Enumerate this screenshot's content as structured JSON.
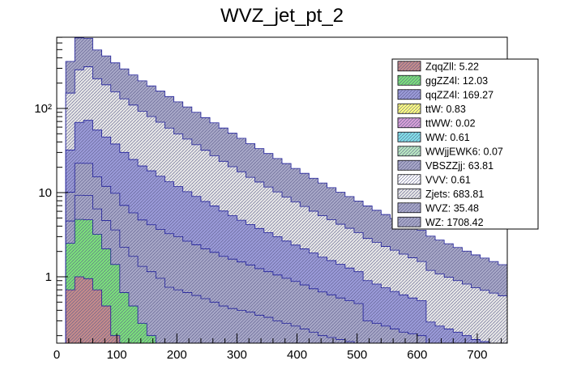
{
  "chart_data": {
    "type": "bar",
    "stacked": true,
    "title": "WVZ_jet_pt_2",
    "xlabel": "",
    "ylabel": "",
    "yscale": "log",
    "xlim": [
      0,
      750
    ],
    "ylim": [
      0.15,
      700
    ],
    "bin_edges_start": 15,
    "bin_width": 15,
    "xticks": [
      0,
      100,
      200,
      300,
      400,
      500,
      600,
      700
    ],
    "xtick_labels": [
      "0",
      "100",
      "200",
      "300",
      "400",
      "500",
      "600",
      "700"
    ],
    "yticks": [
      1,
      10,
      100
    ],
    "ytick_labels": [
      "1",
      "10",
      "10²"
    ],
    "legend_position": "top-right",
    "layers": [
      {
        "name": "ZqqZll",
        "label": "ZqqZll: 5.22",
        "color": "#c48b8b",
        "values": [
          0.7,
          1.0,
          0.95,
          0.7,
          0.45,
          0.2
        ]
      },
      {
        "name": "ggZZ4l",
        "label": "ggZZ4l: 12.03",
        "color": "#7be07b",
        "values": [
          1.8,
          3.8,
          3.8,
          2.5,
          1.7,
          1.2,
          0.65,
          0.45,
          0.28,
          0.2,
          0.16
        ]
      },
      {
        "name": "WVZ",
        "label": "WVZ: 35.48",
        "color": "#a7a7c7",
        "values": [
          2.1,
          4.5,
          4.5,
          3.2,
          2.5,
          2.2,
          1.6,
          1.3,
          1.05,
          0.95,
          0.8,
          0.75,
          0.7,
          0.65,
          0.6,
          0.55,
          0.5,
          0.45,
          0.42,
          0.4,
          0.38,
          0.35,
          0.33,
          0.3,
          0.28,
          0.26,
          0.24,
          0.22,
          0.2,
          0.19,
          0.18,
          0.17,
          0.16
        ]
      },
      {
        "name": "VBSZZjj",
        "label": "VBSZZjj: 63.81",
        "color": "#a7a7c7",
        "values": [
          5.5,
          13,
          13,
          9,
          7.2,
          6.2,
          4.8,
          4.0,
          3.4,
          3.0,
          2.7,
          2.5,
          2.3,
          2.0,
          1.8,
          1.6,
          1.45,
          1.3,
          1.2,
          1.1,
          1.0,
          0.9,
          0.82,
          0.75,
          0.68,
          0.62,
          0.56,
          0.5,
          0.46,
          0.42,
          0.38,
          0.35,
          0.32,
          0.3,
          0.28,
          0.26,
          0.24,
          0.22,
          0.21,
          0.2
        ]
      },
      {
        "name": "qqZZ4l",
        "label": "qqZZ4l: 169.27",
        "color": "#9a9ad8",
        "values": [
          22,
          46,
          50,
          40,
          34,
          28,
          23,
          19,
          16,
          14,
          12,
          10.2,
          8.8,
          7.6,
          6.6,
          5.7,
          5.0,
          4.3,
          3.7,
          3.2,
          2.8,
          2.5,
          2.2,
          1.95,
          1.7,
          1.5,
          1.35,
          1.2,
          1.05,
          0.95,
          0.85,
          0.75,
          0.67,
          0.6,
          0.54,
          0.48,
          0.43,
          0.39,
          0.35,
          0.32,
          0.29,
          0.26,
          0.24,
          0.22,
          0.2,
          0.18,
          0.17,
          0.16,
          0.155,
          0.15
        ]
      },
      {
        "name": "Zjets",
        "label": "Zjets: 683.81",
        "color": "#e6e6e6",
        "values": [
          120,
          220,
          240,
          170,
          145,
          120,
          100,
          85,
          72,
          62,
          53,
          45,
          38,
          33,
          28,
          24,
          20.5,
          17.5,
          15,
          13,
          11,
          9.6,
          8.3,
          7.2,
          6.2,
          5.4,
          4.7,
          4.1,
          3.6,
          3.2,
          2.8,
          2.5,
          2.2,
          1.95,
          1.75,
          1.55,
          1.4,
          1.25,
          1.12,
          1.0,
          0.9,
          0.82,
          0.75,
          0.68,
          0.62,
          0.56,
          0.52,
          0.48,
          0.44,
          0.4
        ]
      },
      {
        "name": "WZ",
        "label": "WZ: 1708.42",
        "color": "#a7a7c7",
        "values": [
          210,
          400,
          370,
          270,
          230,
          190,
          165,
          140,
          120,
          105,
          92,
          80,
          70,
          61,
          53,
          46,
          40,
          35,
          30.5,
          26.5,
          23,
          20,
          17.5,
          15.2,
          13.3,
          11.6,
          10.1,
          8.8,
          7.7,
          6.7,
          5.9,
          5.2,
          4.6,
          4.1,
          3.6,
          3.2,
          2.85,
          2.55,
          2.3,
          2.05,
          1.85,
          1.65,
          1.48,
          1.33,
          1.2,
          1.08,
          0.98,
          0.88,
          0.8,
          0.75
        ]
      }
    ],
    "legend": [
      {
        "label": "ZqqZll: 5.22",
        "color": "#c48b8b"
      },
      {
        "label": "ggZZ4l: 12.03",
        "color": "#7be07b"
      },
      {
        "label": "qqZZ4l: 169.27",
        "color": "#9a9ad8"
      },
      {
        "label": "ttW: 0.83",
        "color": "#ffff80"
      },
      {
        "label": "ttWW: 0.02",
        "color": "#d7a0d7"
      },
      {
        "label": "WW: 0.61",
        "color": "#80e0e8"
      },
      {
        "label": "WWjjEWK6: 0.07",
        "color": "#b8e8c0"
      },
      {
        "label": "VBSZZjj: 63.81",
        "color": "#a7a7c7"
      },
      {
        "label": "VVV: 0.61",
        "color": "#ffffff"
      },
      {
        "label": "Zjets: 683.81",
        "color": "#e6e6e6"
      },
      {
        "label": "WVZ: 35.48",
        "color": "#a7a7c7"
      },
      {
        "label": "WZ: 1708.42",
        "color": "#a7a7c7"
      }
    ]
  }
}
